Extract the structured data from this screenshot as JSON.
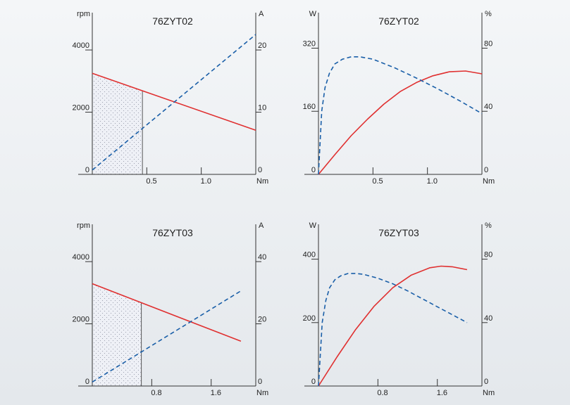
{
  "chart_data": [
    {
      "type": "line",
      "title": "76ZYT02",
      "xlabel": "Nm",
      "xlim": [
        0,
        1.5
      ],
      "x_ticks": [
        "0.5",
        "1.0"
      ],
      "x_tick_values": [
        0.5,
        1.0
      ],
      "left_axis": {
        "unit": "rpm",
        "ylim": [
          0,
          5200
        ],
        "ticks": [
          0,
          2000,
          4000
        ]
      },
      "right_axis": {
        "unit": "A",
        "ylim": [
          0,
          26
        ],
        "ticks": [
          0,
          10,
          20
        ]
      },
      "shaded_region": {
        "x": [
          0,
          0.46
        ]
      },
      "series": [
        {
          "axis": "left",
          "color": "#e03030",
          "dash": false,
          "x": [
            0,
            1.5
          ],
          "y": [
            3250,
            1420
          ]
        },
        {
          "axis": "right",
          "color": "#1a5fa8",
          "dash": true,
          "x": [
            0,
            1.5
          ],
          "y": [
            0.7,
            22.5
          ]
        }
      ]
    },
    {
      "type": "line",
      "title": "76ZYT02",
      "xlabel": "Nm",
      "xlim": [
        0,
        1.5
      ],
      "x_ticks": [
        "0.5",
        "1.0"
      ],
      "x_tick_values": [
        0.5,
        1.0
      ],
      "left_axis": {
        "unit": "W",
        "ylim": [
          0,
          410
        ],
        "ticks": [
          0,
          160,
          320
        ]
      },
      "right_axis": {
        "unit": "%",
        "ylim": [
          0,
          102.5
        ],
        "ticks": [
          0,
          40,
          80
        ]
      },
      "series": [
        {
          "axis": "left",
          "color": "#e03030",
          "dash": false,
          "x": [
            0,
            0.15,
            0.3,
            0.45,
            0.6,
            0.75,
            0.9,
            1.05,
            1.2,
            1.35,
            1.5
          ],
          "y": [
            0,
            50,
            98,
            140,
            178,
            210,
            233,
            250,
            260,
            262,
            255
          ]
        },
        {
          "axis": "right",
          "color": "#1a5fa8",
          "dash": true,
          "x": [
            0,
            0.03,
            0.06,
            0.1,
            0.15,
            0.22,
            0.3,
            0.38,
            0.5,
            0.7,
            0.9,
            1.1,
            1.3,
            1.5
          ],
          "y": [
            0,
            40,
            55,
            64,
            70,
            73,
            74.5,
            74.5,
            73,
            67.5,
            61,
            54,
            46.5,
            38.5
          ]
        }
      ]
    },
    {
      "type": "line",
      "title": "76ZYT03",
      "xlabel": "Nm",
      "xlim": [
        0,
        2.2
      ],
      "x_ticks": [
        "0.8",
        "1.6"
      ],
      "x_tick_values": [
        0.8,
        1.6
      ],
      "left_axis": {
        "unit": "rpm",
        "ylim": [
          0,
          5200
        ],
        "ticks": [
          0,
          2000,
          4000
        ]
      },
      "right_axis": {
        "unit": "A",
        "ylim": [
          0,
          52
        ],
        "ticks": [
          0,
          20,
          40
        ]
      },
      "shaded_region": {
        "x": [
          0,
          0.66
        ]
      },
      "series": [
        {
          "axis": "left",
          "color": "#e03030",
          "dash": false,
          "x": [
            0,
            2.0
          ],
          "y": [
            3290,
            1440
          ]
        },
        {
          "axis": "right",
          "color": "#1a5fa8",
          "dash": true,
          "x": [
            0,
            2.0
          ],
          "y": [
            1.3,
            30.6
          ]
        }
      ]
    },
    {
      "type": "line",
      "title": "76ZYT03",
      "xlabel": "Nm",
      "xlim": [
        0,
        2.2
      ],
      "x_ticks": [
        "0.8",
        "1.6"
      ],
      "x_tick_values": [
        0.8,
        1.6
      ],
      "left_axis": {
        "unit": "W",
        "ylim": [
          0,
          510
        ],
        "ticks": [
          0,
          200,
          400
        ]
      },
      "right_axis": {
        "unit": "%",
        "ylim": [
          0,
          102
        ],
        "ticks": [
          0,
          40,
          80
        ]
      },
      "series": [
        {
          "axis": "left",
          "color": "#e03030",
          "dash": false,
          "x": [
            0,
            0.25,
            0.5,
            0.75,
            1.0,
            1.25,
            1.5,
            1.65,
            1.8,
            2.0
          ],
          "y": [
            0,
            92,
            178,
            252,
            310,
            350,
            373,
            378,
            376,
            367
          ]
        },
        {
          "axis": "right",
          "color": "#1a5fa8",
          "dash": true,
          "x": [
            0,
            0.05,
            0.1,
            0.15,
            0.22,
            0.3,
            0.4,
            0.5,
            0.6,
            0.8,
            1.0,
            1.2,
            1.4,
            1.6,
            1.8,
            2.0
          ],
          "y": [
            0,
            40,
            54,
            62,
            67,
            69.5,
            71,
            71,
            70.5,
            68,
            64.5,
            60,
            55,
            50,
            45,
            40
          ]
        }
      ]
    }
  ]
}
